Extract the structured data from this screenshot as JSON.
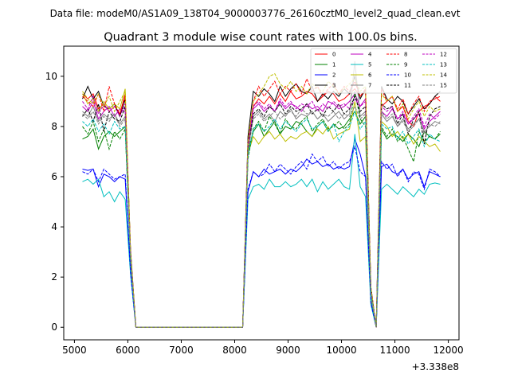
{
  "chart_data": {
    "type": "line",
    "suptitle": "Data file: modeM0/AS1A09_138T04_9000003776_26160cztM0_level2_quad_clean.evt",
    "title": "Quadrant 3 module wise count rates with 100.0s bins.",
    "xlabel": "",
    "ylabel": "",
    "x_offset_label": "+3.338e8",
    "xlim": [
      4800,
      12200
    ],
    "ylim": [
      -0.5,
      11.2
    ],
    "xticks": [
      5000,
      6000,
      7000,
      8000,
      9000,
      10000,
      11000,
      12000
    ],
    "xtick_labels": [
      "5000",
      "6000",
      "7000",
      "8000",
      "9000",
      "10000",
      "11000",
      "12000"
    ],
    "yticks": [
      0,
      2,
      4,
      6,
      8,
      10
    ],
    "ytick_labels": [
      "0",
      "2",
      "4",
      "6",
      "8",
      "10"
    ],
    "grid": false,
    "legend_position": "top-right",
    "x_note": "x values run from 5150 to 11850 in 100 s steps",
    "series": [
      {
        "name": "0",
        "color": "#ff0000",
        "dash": "solid",
        "values": [
          9.3,
          9.1,
          9.3,
          8.7,
          8.9,
          8.6,
          8.8,
          8.5,
          9.3,
          3.0,
          0,
          0,
          0,
          0,
          0,
          0,
          0,
          0,
          0,
          0,
          0,
          0,
          0,
          0,
          0,
          0,
          0,
          0,
          0,
          0,
          0,
          7.4,
          8.8,
          9.1,
          8.9,
          9.2,
          8.9,
          9.3,
          9.0,
          9.4,
          9.1,
          9.2,
          9.4,
          9.3,
          9.0,
          9.2,
          9.4,
          9.3,
          9.0,
          9.1,
          9.3,
          9.5,
          9.2,
          9.4,
          1.5,
          0,
          8.8,
          9.0,
          9.2,
          8.6,
          8.8,
          8.2,
          8.0,
          8.6,
          8.8,
          8.9,
          9.2,
          9.0
        ]
      },
      {
        "name": "1",
        "color": "#008000",
        "dash": "solid",
        "values": [
          7.5,
          7.6,
          7.9,
          7.1,
          7.6,
          7.8,
          7.6,
          7.8,
          8.0,
          2.7,
          0,
          0,
          0,
          0,
          0,
          0,
          0,
          0,
          0,
          0,
          0,
          0,
          0,
          0,
          0,
          0,
          0,
          0,
          0,
          0,
          0,
          7.0,
          7.8,
          8.1,
          7.6,
          7.9,
          8.2,
          7.7,
          8.0,
          7.9,
          8.2,
          8.1,
          7.8,
          7.6,
          8.0,
          8.2,
          7.8,
          8.1,
          7.9,
          8.0,
          8.3,
          8.6,
          8.1,
          8.4,
          1.3,
          0,
          7.9,
          7.5,
          7.7,
          7.6,
          7.4,
          7.7,
          7.5,
          7.2,
          7.8,
          7.6,
          7.5,
          7.7
        ]
      },
      {
        "name": "2",
        "color": "#0000ff",
        "dash": "solid",
        "values": [
          6.3,
          6.25,
          6.3,
          5.6,
          6.1,
          6.0,
          5.8,
          6.0,
          5.9,
          2.2,
          0,
          0,
          0,
          0,
          0,
          0,
          0,
          0,
          0,
          0,
          0,
          0,
          0,
          0,
          0,
          0,
          0,
          0,
          0,
          0,
          0,
          5.4,
          6.2,
          6.0,
          6.3,
          6.1,
          6.2,
          6.3,
          6.1,
          6.3,
          6.2,
          6.4,
          6.7,
          6.5,
          6.6,
          6.4,
          6.5,
          6.3,
          6.4,
          6.3,
          6.4,
          7.5,
          6.9,
          6.0,
          1.0,
          0,
          6.4,
          6.5,
          6.2,
          6.1,
          6.3,
          5.9,
          6.1,
          6.2,
          5.6,
          6.2,
          6.1,
          6.0
        ]
      },
      {
        "name": "3",
        "color": "#000000",
        "dash": "solid",
        "values": [
          9.1,
          9.6,
          9.1,
          9.4,
          8.8,
          8.7,
          8.9,
          8.4,
          9.1,
          3.1,
          0,
          0,
          0,
          0,
          0,
          0,
          0,
          0,
          0,
          0,
          0,
          0,
          0,
          0,
          0,
          0,
          0,
          0,
          0,
          0,
          0,
          7.6,
          9.4,
          9.2,
          9.5,
          9.3,
          9.0,
          9.6,
          9.2,
          9.5,
          9.7,
          9.4,
          9.3,
          9.6,
          9.0,
          9.3,
          9.1,
          9.4,
          9.2,
          9.5,
          9.3,
          10.0,
          9.1,
          9.5,
          1.6,
          0,
          9.6,
          9.1,
          8.9,
          9.2,
          9.0,
          8.5,
          8.8,
          9.1,
          8.7,
          8.9,
          9.2,
          9.4
        ]
      },
      {
        "name": "4",
        "color": "#bf00bf",
        "dash": "solid",
        "values": [
          8.8,
          8.6,
          9.0,
          8.3,
          8.6,
          8.8,
          8.4,
          8.7,
          8.6,
          2.9,
          0,
          0,
          0,
          0,
          0,
          0,
          0,
          0,
          0,
          0,
          0,
          0,
          0,
          0,
          0,
          0,
          0,
          0,
          0,
          0,
          0,
          7.2,
          8.7,
          8.9,
          8.6,
          8.8,
          8.6,
          9.0,
          8.7,
          8.9,
          8.8,
          8.6,
          8.9,
          8.7,
          8.8,
          8.6,
          9.0,
          8.9,
          8.7,
          8.8,
          9.0,
          9.3,
          8.8,
          9.1,
          1.4,
          0,
          8.6,
          8.4,
          8.7,
          8.3,
          8.5,
          8.1,
          8.3,
          8.5,
          7.9,
          8.2,
          8.4,
          8.6
        ]
      },
      {
        "name": "5",
        "color": "#00bfbf",
        "dash": "solid",
        "values": [
          5.8,
          5.9,
          5.7,
          5.9,
          5.2,
          5.4,
          5.0,
          5.4,
          5.1,
          2.1,
          0,
          0,
          0,
          0,
          0,
          0,
          0,
          0,
          0,
          0,
          0,
          0,
          0,
          0,
          0,
          0,
          0,
          0,
          0,
          0,
          0,
          5.1,
          5.6,
          5.7,
          5.5,
          5.9,
          5.6,
          5.6,
          5.8,
          5.6,
          5.7,
          5.9,
          5.6,
          5.9,
          5.4,
          5.8,
          5.5,
          5.7,
          5.9,
          5.6,
          5.5,
          7.7,
          5.6,
          5.2,
          0.9,
          0,
          5.5,
          5.7,
          5.5,
          5.3,
          5.6,
          5.4,
          5.2,
          5.5,
          5.3,
          5.7,
          5.75,
          5.7
        ]
      },
      {
        "name": "6",
        "color": "#bfbf00",
        "dash": "solid",
        "values": [
          9.3,
          8.9,
          9.1,
          8.6,
          9.0,
          8.7,
          8.9,
          8.7,
          9.5,
          3.0,
          0,
          0,
          0,
          0,
          0,
          0,
          0,
          0,
          0,
          0,
          0,
          0,
          0,
          0,
          0,
          0,
          0,
          0,
          0,
          0,
          0,
          6.9,
          7.6,
          7.3,
          7.6,
          7.8,
          7.5,
          7.7,
          7.4,
          7.6,
          7.5,
          7.7,
          7.8,
          7.6,
          7.9,
          7.7,
          8.0,
          7.5,
          7.7,
          7.8,
          7.9,
          9.0,
          7.4,
          7.6,
          1.2,
          0,
          8.2,
          8.0,
          7.6,
          7.8,
          7.5,
          7.7,
          7.3,
          7.6,
          7.4,
          7.2,
          7.3,
          7.0
        ]
      },
      {
        "name": "7",
        "color": "#808080",
        "dash": "solid",
        "values": [
          8.6,
          8.4,
          8.8,
          8.2,
          8.5,
          8.3,
          8.5,
          8.1,
          8.4,
          2.8,
          0,
          0,
          0,
          0,
          0,
          0,
          0,
          0,
          0,
          0,
          0,
          0,
          0,
          0,
          0,
          0,
          0,
          0,
          0,
          0,
          0,
          7.1,
          8.4,
          8.6,
          8.3,
          8.5,
          8.2,
          8.6,
          8.4,
          8.7,
          8.3,
          8.5,
          8.4,
          8.6,
          8.3,
          8.5,
          8.2,
          8.4,
          8.6,
          8.3,
          8.5,
          10.6,
          8.4,
          8.6,
          1.4,
          0,
          8.5,
          8.2,
          8.4,
          8.0,
          8.3,
          7.9,
          8.1,
          8.3,
          7.8,
          8.0,
          8.2,
          8.1
        ]
      },
      {
        "name": "8",
        "color": "#ff0000",
        "dash": "dashed",
        "values": [
          9.2,
          9.0,
          8.8,
          9.3,
          8.6,
          9.6,
          8.9,
          8.5,
          9.2,
          3.0,
          0,
          0,
          0,
          0,
          0,
          0,
          0,
          0,
          0,
          0,
          0,
          0,
          0,
          0,
          0,
          0,
          0,
          0,
          0,
          0,
          0,
          7.3,
          9.0,
          9.6,
          9.2,
          9.5,
          9.8,
          9.3,
          9.6,
          9.4,
          9.7,
          9.3,
          9.9,
          9.4,
          9.6,
          9.2,
          9.5,
          9.7,
          9.3,
          9.6,
          9.4,
          9.8,
          9.2,
          9.5,
          1.6,
          0,
          9.5,
          9.0,
          9.2,
          8.7,
          9.1,
          8.5,
          8.9,
          9.2,
          8.6,
          9.0,
          9.1,
          9.2
        ]
      },
      {
        "name": "9",
        "color": "#008000",
        "dash": "dashed",
        "values": [
          8.0,
          7.7,
          8.2,
          7.4,
          7.9,
          7.1,
          7.8,
          7.5,
          7.9,
          2.7,
          0,
          0,
          0,
          0,
          0,
          0,
          0,
          0,
          0,
          0,
          0,
          0,
          0,
          0,
          0,
          0,
          0,
          0,
          0,
          0,
          0,
          6.7,
          7.9,
          8.2,
          7.8,
          8.4,
          8.1,
          7.7,
          8.3,
          8.0,
          7.9,
          8.2,
          8.4,
          7.8,
          8.1,
          8.3,
          7.9,
          8.0,
          8.2,
          7.9,
          8.1,
          9.4,
          8.3,
          8.0,
          1.3,
          0,
          8.0,
          7.6,
          7.9,
          7.4,
          7.6,
          7.1,
          6.6,
          7.8,
          7.4,
          7.6,
          7.5,
          7.8
        ]
      },
      {
        "name": "10",
        "color": "#0000ff",
        "dash": "dashed",
        "values": [
          6.2,
          6.1,
          6.3,
          5.8,
          6.3,
          6.1,
          5.9,
          6.0,
          6.1,
          2.2,
          0,
          0,
          0,
          0,
          0,
          0,
          0,
          0,
          0,
          0,
          0,
          0,
          0,
          0,
          0,
          0,
          0,
          0,
          0,
          0,
          0,
          5.5,
          6.2,
          6.0,
          6.1,
          6.5,
          6.2,
          6.5,
          6.3,
          6.1,
          6.4,
          6.6,
          6.3,
          6.9,
          6.6,
          6.8,
          6.4,
          6.6,
          6.3,
          6.5,
          6.6,
          7.2,
          6.2,
          6.0,
          1.0,
          0,
          6.6,
          6.3,
          6.5,
          6.0,
          6.3,
          5.8,
          6.2,
          6.1,
          5.5,
          6.3,
          6.2,
          6.0
        ]
      },
      {
        "name": "11",
        "color": "#000000",
        "dash": "dashed",
        "values": [
          8.4,
          8.7,
          8.2,
          8.9,
          7.8,
          8.6,
          8.3,
          8.2,
          8.8,
          2.9,
          0,
          0,
          0,
          0,
          0,
          0,
          0,
          0,
          0,
          0,
          0,
          0,
          0,
          0,
          0,
          0,
          0,
          0,
          0,
          0,
          0,
          7.1,
          8.5,
          8.7,
          8.4,
          8.8,
          8.6,
          8.9,
          8.5,
          8.8,
          8.6,
          8.7,
          8.9,
          8.5,
          8.7,
          8.4,
          8.8,
          8.6,
          8.9,
          8.5,
          8.7,
          9.2,
          8.6,
          8.8,
          1.5,
          0,
          8.9,
          8.7,
          8.8,
          8.1,
          8.5,
          7.7,
          8.3,
          8.6,
          7.3,
          8.4,
          8.7,
          8.8
        ]
      },
      {
        "name": "12",
        "color": "#bf00bf",
        "dash": "dashed",
        "values": [
          9.0,
          8.7,
          9.2,
          8.5,
          8.9,
          8.6,
          8.8,
          8.4,
          8.9,
          2.9,
          0,
          0,
          0,
          0,
          0,
          0,
          0,
          0,
          0,
          0,
          0,
          0,
          0,
          0,
          0,
          0,
          0,
          0,
          0,
          0,
          0,
          7.2,
          8.8,
          9.0,
          8.7,
          8.9,
          8.6,
          9.1,
          8.8,
          9.0,
          8.7,
          8.9,
          8.8,
          9.0,
          8.6,
          8.9,
          8.7,
          9.0,
          8.8,
          8.9,
          8.7,
          9.1,
          8.8,
          9.0,
          1.5,
          0,
          8.8,
          8.6,
          8.8,
          8.3,
          8.6,
          8.1,
          8.4,
          8.7,
          8.0,
          8.5,
          8.3,
          8.5
        ]
      },
      {
        "name": "13",
        "color": "#00bfbf",
        "dash": "dashed",
        "values": [
          8.2,
          8.0,
          8.3,
          7.8,
          8.1,
          7.7,
          8.2,
          7.9,
          8.0,
          2.7,
          0,
          0,
          0,
          0,
          0,
          0,
          0,
          0,
          0,
          0,
          0,
          0,
          0,
          0,
          0,
          0,
          0,
          0,
          0,
          0,
          0,
          6.8,
          7.9,
          8.1,
          7.8,
          8.0,
          8.3,
          7.9,
          8.2,
          8.0,
          7.8,
          8.1,
          8.3,
          7.9,
          8.0,
          8.2,
          7.8,
          8.1,
          7.4,
          7.8,
          8.0,
          8.6,
          7.9,
          8.2,
          1.3,
          0,
          8.1,
          7.9,
          8.0,
          7.5,
          7.8,
          7.3,
          7.6,
          7.9,
          7.2,
          7.7,
          7.5,
          7.4
        ]
      },
      {
        "name": "14",
        "color": "#bfbf00",
        "dash": "dashed",
        "values": [
          9.4,
          9.1,
          8.9,
          9.3,
          8.8,
          9.2,
          8.6,
          9.0,
          9.4,
          3.0,
          0,
          0,
          0,
          0,
          0,
          0,
          0,
          0,
          0,
          0,
          0,
          0,
          0,
          0,
          0,
          0,
          0,
          0,
          0,
          0,
          0,
          7.4,
          9.0,
          9.3,
          9.6,
          10.0,
          10.1,
          9.7,
          9.5,
          9.8,
          9.4,
          9.6,
          9.3,
          9.7,
          9.5,
          9.4,
          9.8,
          9.6,
          9.3,
          9.5,
          9.7,
          9.9,
          9.4,
          9.6,
          1.6,
          0,
          9.3,
          9.0,
          9.2,
          8.6,
          8.9,
          8.3,
          8.7,
          9.0,
          8.4,
          8.8,
          8.6,
          8.7
        ]
      },
      {
        "name": "15",
        "color": "#808080",
        "dash": "dashed",
        "values": [
          8.5,
          8.3,
          8.6,
          8.1,
          8.4,
          8.2,
          8.5,
          8.0,
          8.3,
          2.8,
          0,
          0,
          0,
          0,
          0,
          0,
          0,
          0,
          0,
          0,
          0,
          0,
          0,
          0,
          0,
          0,
          0,
          0,
          0,
          0,
          0,
          7.0,
          8.3,
          8.5,
          8.2,
          8.4,
          8.6,
          8.3,
          8.5,
          8.6,
          8.4,
          8.7,
          8.5,
          8.6,
          8.3,
          8.5,
          8.4,
          8.6,
          8.3,
          8.5,
          8.4,
          8.8,
          8.3,
          8.5,
          1.4,
          0,
          8.6,
          8.3,
          8.5,
          8.0,
          8.2,
          7.8,
          8.0,
          8.3,
          7.7,
          8.1,
          8.0,
          8.2
        ]
      }
    ]
  }
}
